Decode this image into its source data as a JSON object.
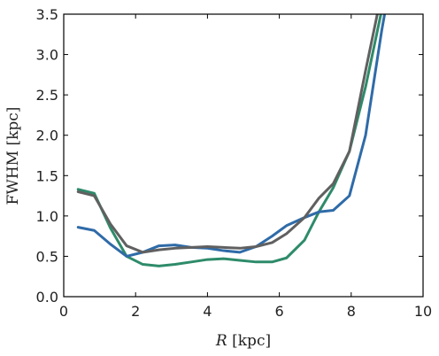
{
  "chart_data": {
    "type": "line",
    "xlabel_italic": "R",
    "xlabel_rest": " [kpc]",
    "ylabel": "FWHM [kpc]",
    "xlim": [
      0,
      10
    ],
    "ylim": [
      0.0,
      3.5
    ],
    "xticks": [
      0,
      2,
      4,
      6,
      8,
      10
    ],
    "xtick_labels": [
      "0",
      "2",
      "4",
      "6",
      "8",
      "10"
    ],
    "yticks": [
      0.0,
      0.5,
      1.0,
      1.5,
      2.0,
      2.5,
      3.0,
      3.5
    ],
    "ytick_labels": [
      "0.0",
      "0.5",
      "1.0",
      "1.5",
      "2.0",
      "2.5",
      "3.0",
      "3.5"
    ],
    "grid": false,
    "legend": "none",
    "series": [
      {
        "color": "#2e8b6a",
        "x": [
          0.4,
          0.85,
          1.3,
          1.75,
          2.2,
          2.65,
          3.1,
          3.55,
          4.0,
          4.45,
          4.9,
          5.35,
          5.8,
          6.2,
          6.7,
          7.1,
          7.5,
          7.95,
          8.4,
          8.85
        ],
        "y": [
          1.33,
          1.28,
          0.85,
          0.5,
          0.4,
          0.38,
          0.4,
          0.43,
          0.46,
          0.47,
          0.45,
          0.43,
          0.43,
          0.48,
          0.7,
          1.05,
          1.35,
          1.8,
          2.6,
          3.55
        ]
      },
      {
        "color": "#2f6ba8",
        "x": [
          0.4,
          0.85,
          1.3,
          1.75,
          2.2,
          2.65,
          3.1,
          3.55,
          4.0,
          4.45,
          4.9,
          5.35,
          5.8,
          6.2,
          6.7,
          7.1,
          7.5,
          7.95,
          8.4,
          8.85,
          8.95
        ],
        "y": [
          0.86,
          0.82,
          0.65,
          0.5,
          0.55,
          0.63,
          0.64,
          0.61,
          0.6,
          0.57,
          0.55,
          0.62,
          0.75,
          0.88,
          0.98,
          1.05,
          1.07,
          1.25,
          2.0,
          3.3,
          3.55
        ]
      },
      {
        "color": "#606060",
        "x": [
          0.4,
          0.85,
          1.3,
          1.75,
          2.2,
          2.65,
          3.1,
          3.55,
          4.0,
          4.45,
          4.9,
          5.35,
          5.8,
          6.2,
          6.7,
          7.1,
          7.5,
          7.95,
          8.4,
          8.75
        ],
        "y": [
          1.3,
          1.25,
          0.9,
          0.63,
          0.55,
          0.58,
          0.6,
          0.61,
          0.62,
          0.61,
          0.6,
          0.62,
          0.67,
          0.78,
          0.98,
          1.22,
          1.4,
          1.8,
          2.8,
          3.55
        ]
      }
    ]
  }
}
